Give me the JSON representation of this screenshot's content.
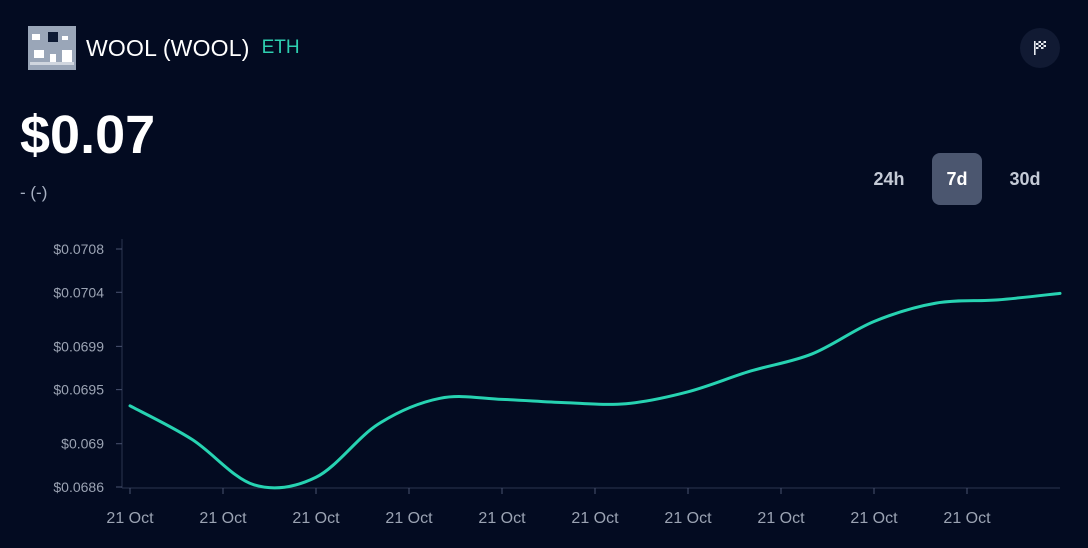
{
  "header": {
    "token_name": "WOOL (WOOL)",
    "chain": "ETH",
    "logo_icon": "wool-token-logo",
    "flag_icon": "flag-icon"
  },
  "price": {
    "value": "$0.07",
    "change": "- (-)"
  },
  "range": {
    "options": [
      "24h",
      "7d",
      "30d"
    ],
    "selected": "7d"
  },
  "colors": {
    "background": "#030b21",
    "line": "#27d3b2",
    "accent": "#2ecfb0"
  },
  "chart_data": {
    "type": "line",
    "y_ticks": [
      {
        "value": 0.0708,
        "label": "$0.0708"
      },
      {
        "value": 0.0704,
        "label": "$0.0704"
      },
      {
        "value": 0.0699,
        "label": "$0.0699"
      },
      {
        "value": 0.0695,
        "label": "$0.0695"
      },
      {
        "value": 0.069,
        "label": "$0.069"
      },
      {
        "value": 0.0686,
        "label": "$0.0686"
      }
    ],
    "x_tick_labels": [
      "21 Oct",
      "21 Oct",
      "21 Oct",
      "21 Oct",
      "21 Oct",
      "21 Oct",
      "21 Oct",
      "21 Oct",
      "21 Oct",
      "21 Oct"
    ],
    "ylim": [
      0.0686,
      0.0708
    ],
    "grid": false,
    "series": [
      {
        "values": [
          0.06935,
          0.06904,
          0.06862,
          0.06869,
          0.06918,
          0.06942,
          0.06941,
          0.06938,
          0.06937,
          0.06948,
          0.06967,
          0.06983,
          0.07013,
          0.0703,
          0.07033,
          0.07039
        ]
      }
    ]
  }
}
